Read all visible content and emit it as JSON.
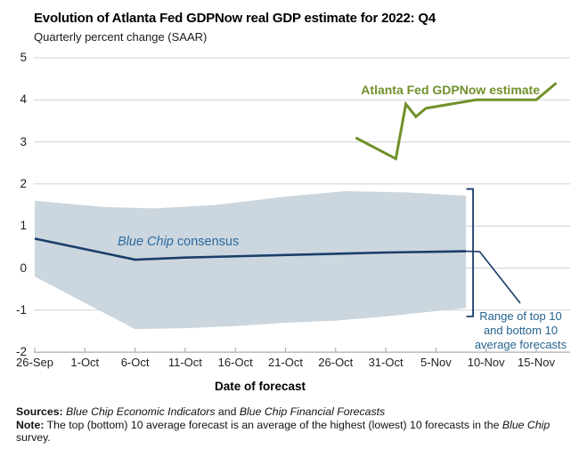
{
  "header": {
    "title": "Evolution of Atlanta Fed GDPNow real GDP estimate for 2022: Q4",
    "subtitle": "Quarterly percent change (SAAR)"
  },
  "labels": {
    "gdpnow": "Atlanta Fed GDPNow estimate",
    "consensus_italic": "Blue Chip",
    "consensus_rest": " consensus"
  },
  "chart_data": {
    "type": "line",
    "title": "Evolution of Atlanta Fed GDPNow real GDP estimate for 2022: Q4",
    "xlabel": "Date of forecast",
    "ylabel": "Quarterly percent change (SAAR)",
    "ylim": [
      -2,
      5
    ],
    "grid": true,
    "legend": "direct-labels",
    "y_ticks": [
      5,
      4,
      3,
      2,
      1,
      0,
      -1,
      -2
    ],
    "x_ticks": [
      "26-Sep",
      "1-Oct",
      "6-Oct",
      "11-Oct",
      "16-Oct",
      "21-Oct",
      "26-Oct",
      "31-Oct",
      "5-Nov",
      "10-Nov",
      "15-Nov"
    ],
    "colors": {
      "grid": "#cdd1d4",
      "axis": "#a9aeb3",
      "gdpnow_green": "#70912b",
      "consensus_navy": "#1a3e6b",
      "label_blue": "#2d6a9f",
      "annotation_blue": "#26648e"
    },
    "series": [
      {
        "name": "Atlanta Fed GDPNow estimate",
        "color": "#70912b",
        "points": [
          [
            "28-Oct",
            3.1
          ],
          [
            "1-Nov",
            2.6
          ],
          [
            "2-Nov",
            3.9
          ],
          [
            "3-Nov",
            3.6
          ],
          [
            "4-Nov",
            3.8
          ],
          [
            "9-Nov",
            4.0
          ],
          [
            "15-Nov",
            4.0
          ],
          [
            "17-Nov",
            4.4
          ]
        ]
      },
      {
        "name": "Blue Chip consensus",
        "color": "#1a3e6b",
        "points": [
          [
            "26-Sep",
            0.7
          ],
          [
            "6-Oct",
            0.2
          ],
          [
            "11-Oct",
            0.25
          ],
          [
            "16-Oct",
            0.28
          ],
          [
            "21-Oct",
            0.31
          ],
          [
            "26-Oct",
            0.34
          ],
          [
            "31-Oct",
            0.37
          ],
          [
            "8-Nov",
            0.4
          ]
        ]
      }
    ],
    "band": {
      "name": "Range of top 10 and bottom 10 average forecasts",
      "fill": "#cbd6de",
      "label_lines": [
        "Range of top 10",
        "and bottom 10",
        "average forecasts"
      ],
      "top": [
        [
          "26-Sep",
          1.6
        ],
        [
          "3-Oct",
          1.45
        ],
        [
          "8-Oct",
          1.42
        ],
        [
          "14-Oct",
          1.5
        ],
        [
          "21-Oct",
          1.7
        ],
        [
          "27-Oct",
          1.83
        ],
        [
          "2-Nov",
          1.8
        ],
        [
          "8-Nov",
          1.72
        ]
      ],
      "bottom": [
        [
          "26-Sep",
          -0.2
        ],
        [
          "6-Oct",
          -1.45
        ],
        [
          "11-Oct",
          -1.43
        ],
        [
          "16-Oct",
          -1.38
        ],
        [
          "21-Oct",
          -1.3
        ],
        [
          "26-Oct",
          -1.25
        ],
        [
          "31-Oct",
          -1.15
        ],
        [
          "8-Nov",
          -0.95
        ]
      ]
    }
  },
  "footer": {
    "sources_label": "Sources:",
    "sources_italic1": " Blue Chip Economic Indicators",
    "sources_and": " and ",
    "sources_italic2": "Blue Chip Financial Forecasts",
    "note_label": "Note:",
    "note_body": " The top (bottom) 10 average forecast is an average of the highest (lowest) 10 forecasts in the ",
    "note_italic": "Blue Chip",
    "note_tail": " survey."
  }
}
